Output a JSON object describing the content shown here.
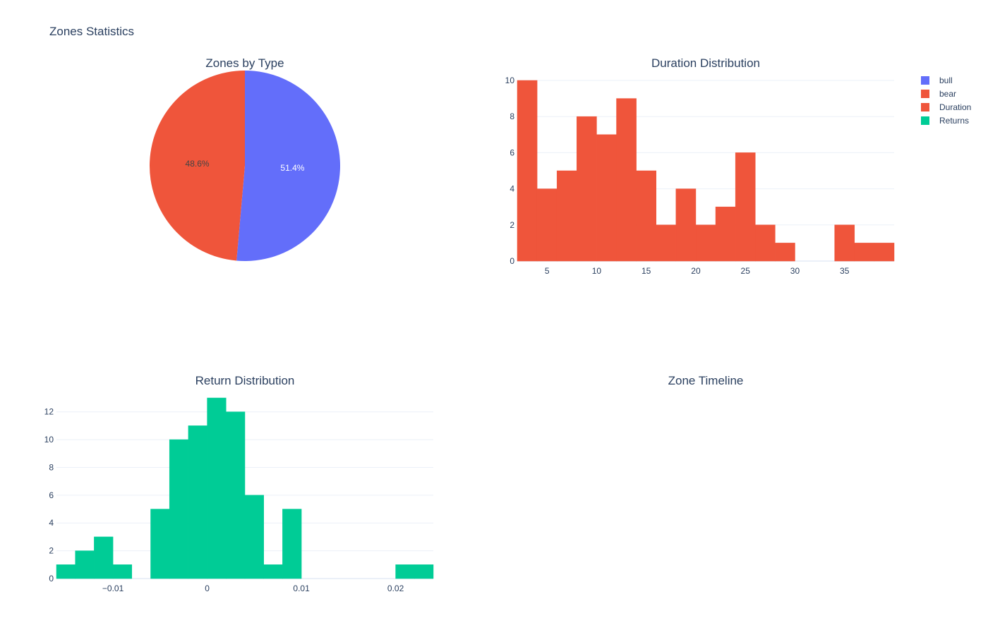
{
  "figure": {
    "title": "Zones Statistics"
  },
  "colors": {
    "bull": "#636efa",
    "bear": "#ef553b",
    "duration": "#ef553b",
    "returns": "#00cc96"
  },
  "legend": {
    "items": [
      {
        "label": "bull",
        "color": "#636efa"
      },
      {
        "label": "bear",
        "color": "#ef553b"
      },
      {
        "label": "Duration",
        "color": "#ef553b"
      },
      {
        "label": "Returns",
        "color": "#00cc96"
      }
    ]
  },
  "chart_data": [
    {
      "type": "pie",
      "title": "Zones by Type",
      "labels": [
        "bull",
        "bear"
      ],
      "values": [
        51.4,
        48.6
      ],
      "text": [
        "51.4%",
        "48.6%"
      ],
      "colors": [
        "#636efa",
        "#ef553b"
      ]
    },
    {
      "type": "bar",
      "title": "Duration Distribution",
      "series": [
        {
          "name": "Duration",
          "color": "#ef553b",
          "bins": [
            {
              "x0": 2,
              "x1": 4,
              "y": 10
            },
            {
              "x0": 4,
              "x1": 6,
              "y": 4
            },
            {
              "x0": 6,
              "x1": 8,
              "y": 5
            },
            {
              "x0": 8,
              "x1": 10,
              "y": 8
            },
            {
              "x0": 10,
              "x1": 12,
              "y": 7
            },
            {
              "x0": 12,
              "x1": 14,
              "y": 9
            },
            {
              "x0": 14,
              "x1": 16,
              "y": 5
            },
            {
              "x0": 16,
              "x1": 18,
              "y": 2
            },
            {
              "x0": 18,
              "x1": 20,
              "y": 4
            },
            {
              "x0": 20,
              "x1": 22,
              "y": 2
            },
            {
              "x0": 22,
              "x1": 24,
              "y": 3
            },
            {
              "x0": 24,
              "x1": 26,
              "y": 6
            },
            {
              "x0": 26,
              "x1": 28,
              "y": 2
            },
            {
              "x0": 28,
              "x1": 30,
              "y": 1
            },
            {
              "x0": 30,
              "x1": 32,
              "y": 0
            },
            {
              "x0": 32,
              "x1": 34,
              "y": 0
            },
            {
              "x0": 34,
              "x1": 36,
              "y": 2
            },
            {
              "x0": 36,
              "x1": 38,
              "y": 1
            },
            {
              "x0": 38,
              "x1": 40,
              "y": 1
            }
          ]
        }
      ],
      "xlim": [
        2,
        40
      ],
      "ylim": [
        0,
        10
      ],
      "xticks": [
        5,
        10,
        15,
        20,
        25,
        30,
        35
      ],
      "yticks": [
        0,
        2,
        4,
        6,
        8,
        10
      ],
      "grid": true
    },
    {
      "type": "bar",
      "title": "Return Distribution",
      "series": [
        {
          "name": "Returns",
          "color": "#00cc96",
          "bins": [
            {
              "x0": -0.016,
              "x1": -0.014,
              "y": 1
            },
            {
              "x0": -0.014,
              "x1": -0.012,
              "y": 2
            },
            {
              "x0": -0.012,
              "x1": -0.01,
              "y": 3
            },
            {
              "x0": -0.01,
              "x1": -0.008,
              "y": 1
            },
            {
              "x0": -0.008,
              "x1": -0.006,
              "y": 0
            },
            {
              "x0": -0.006,
              "x1": -0.004,
              "y": 5
            },
            {
              "x0": -0.004,
              "x1": -0.002,
              "y": 10
            },
            {
              "x0": -0.002,
              "x1": 0.0,
              "y": 11
            },
            {
              "x0": 0.0,
              "x1": 0.002,
              "y": 13
            },
            {
              "x0": 0.002,
              "x1": 0.004,
              "y": 12
            },
            {
              "x0": 0.004,
              "x1": 0.006,
              "y": 6
            },
            {
              "x0": 0.006,
              "x1": 0.008,
              "y": 1
            },
            {
              "x0": 0.008,
              "x1": 0.01,
              "y": 5
            },
            {
              "x0": 0.01,
              "x1": 0.012,
              "y": 0
            },
            {
              "x0": 0.012,
              "x1": 0.014,
              "y": 0
            },
            {
              "x0": 0.014,
              "x1": 0.016,
              "y": 0
            },
            {
              "x0": 0.016,
              "x1": 0.018,
              "y": 0
            },
            {
              "x0": 0.018,
              "x1": 0.02,
              "y": 0
            },
            {
              "x0": 0.02,
              "x1": 0.022,
              "y": 1
            },
            {
              "x0": 0.022,
              "x1": 0.024,
              "y": 1
            }
          ]
        }
      ],
      "xlim": [
        -0.016,
        0.024
      ],
      "ylim": [
        0,
        13
      ],
      "xticks": [
        -0.01,
        0,
        0.01,
        0.02
      ],
      "xtick_labels": [
        "−0.01",
        "0",
        "0.01",
        "0.02"
      ],
      "yticks": [
        0,
        2,
        4,
        6,
        8,
        10,
        12
      ],
      "grid": true
    },
    {
      "type": "line",
      "title": "Zone Timeline",
      "series": []
    }
  ]
}
